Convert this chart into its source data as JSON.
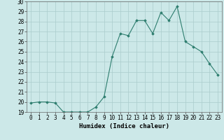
{
  "x": [
    0,
    1,
    2,
    3,
    4,
    5,
    6,
    7,
    8,
    9,
    10,
    11,
    12,
    13,
    14,
    15,
    16,
    17,
    18,
    19,
    20,
    21,
    22,
    23
  ],
  "y": [
    19.9,
    20.0,
    20.0,
    19.9,
    19.0,
    19.0,
    19.0,
    19.0,
    19.5,
    20.5,
    24.5,
    26.8,
    26.6,
    28.1,
    28.1,
    26.8,
    28.9,
    28.1,
    29.5,
    26.0,
    25.5,
    25.0,
    23.8,
    22.7
  ],
  "xlabel": "Humidex (Indice chaleur)",
  "xlim": [
    -0.5,
    23.5
  ],
  "ylim": [
    19,
    30
  ],
  "yticks": [
    19,
    20,
    21,
    22,
    23,
    24,
    25,
    26,
    27,
    28,
    29,
    30
  ],
  "xticks": [
    0,
    1,
    2,
    3,
    4,
    5,
    6,
    7,
    8,
    9,
    10,
    11,
    12,
    13,
    14,
    15,
    16,
    17,
    18,
    19,
    20,
    21,
    22,
    23
  ],
  "line_color": "#2d7d6e",
  "marker": "D",
  "marker_size": 1.8,
  "bg_color": "#cce8e8",
  "grid_color": "#aacccc",
  "label_fontsize": 6.5,
  "tick_fontsize": 5.5
}
